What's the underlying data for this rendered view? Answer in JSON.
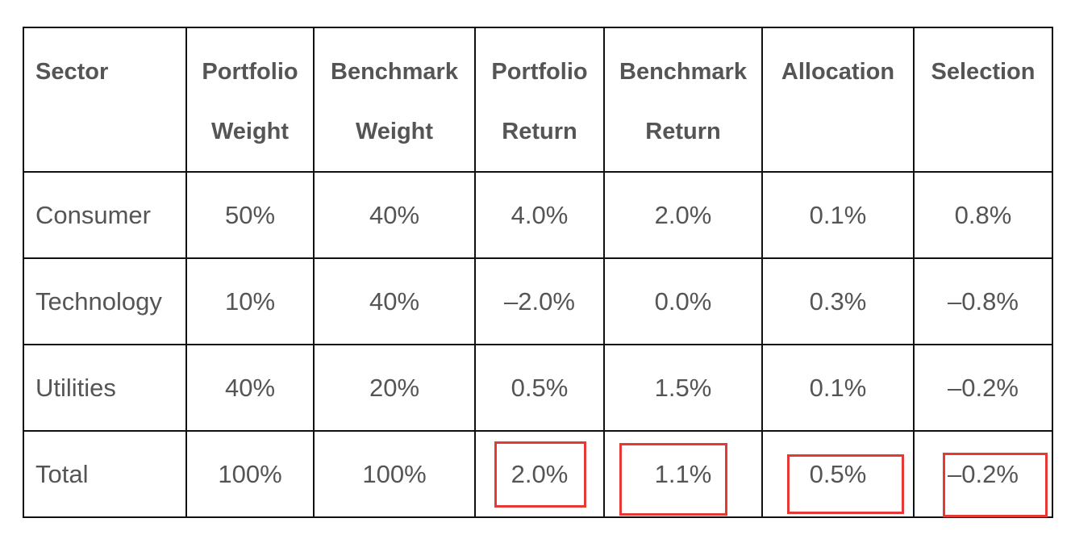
{
  "table": {
    "header": [
      [
        "Sector"
      ],
      [
        "Portfolio",
        "Weight"
      ],
      [
        "Benchmark",
        "Weight"
      ],
      [
        "Portfolio",
        "Return"
      ],
      [
        "Benchmark",
        "Return"
      ],
      [
        "Allocation"
      ],
      [
        "Selection"
      ]
    ],
    "rows": [
      [
        "Consumer",
        "50%",
        "40%",
        "4.0%",
        "2.0%",
        "0.1%",
        "0.8%"
      ],
      [
        "Technology",
        "10%",
        "40%",
        "–2.0%",
        "0.0%",
        "0.3%",
        "–0.8%"
      ],
      [
        "Utilities",
        "40%",
        "20%",
        "0.5%",
        "1.5%",
        "0.1%",
        "–0.2%"
      ],
      [
        "Total",
        "100%",
        "100%",
        "2.0%",
        "1.1%",
        "0.5%",
        "–0.2%"
      ]
    ]
  }
}
